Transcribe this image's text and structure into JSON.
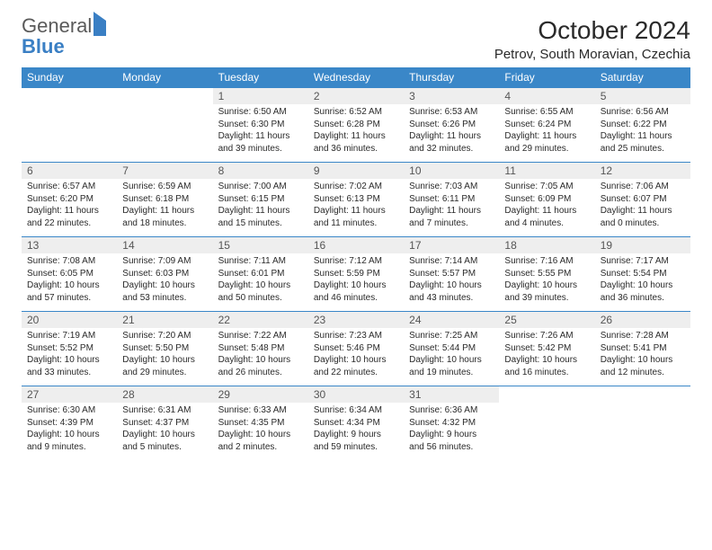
{
  "brand": {
    "name1": "General",
    "name2": "Blue"
  },
  "title": "October 2024",
  "location": "Petrov, South Moravian, Czechia",
  "colors": {
    "header_bg": "#3a87c8",
    "daynum_bg": "#eeeeee",
    "rule": "#3a87c8",
    "logo_gray": "#5a5a5a",
    "logo_blue": "#3a7fc4"
  },
  "weekdays": [
    "Sunday",
    "Monday",
    "Tuesday",
    "Wednesday",
    "Thursday",
    "Friday",
    "Saturday"
  ],
  "weeks": [
    [
      {
        "n": "",
        "sr": "",
        "ss": "",
        "dl": ""
      },
      {
        "n": "",
        "sr": "",
        "ss": "",
        "dl": ""
      },
      {
        "n": "1",
        "sr": "Sunrise: 6:50 AM",
        "ss": "Sunset: 6:30 PM",
        "dl": "Daylight: 11 hours and 39 minutes."
      },
      {
        "n": "2",
        "sr": "Sunrise: 6:52 AM",
        "ss": "Sunset: 6:28 PM",
        "dl": "Daylight: 11 hours and 36 minutes."
      },
      {
        "n": "3",
        "sr": "Sunrise: 6:53 AM",
        "ss": "Sunset: 6:26 PM",
        "dl": "Daylight: 11 hours and 32 minutes."
      },
      {
        "n": "4",
        "sr": "Sunrise: 6:55 AM",
        "ss": "Sunset: 6:24 PM",
        "dl": "Daylight: 11 hours and 29 minutes."
      },
      {
        "n": "5",
        "sr": "Sunrise: 6:56 AM",
        "ss": "Sunset: 6:22 PM",
        "dl": "Daylight: 11 hours and 25 minutes."
      }
    ],
    [
      {
        "n": "6",
        "sr": "Sunrise: 6:57 AM",
        "ss": "Sunset: 6:20 PM",
        "dl": "Daylight: 11 hours and 22 minutes."
      },
      {
        "n": "7",
        "sr": "Sunrise: 6:59 AM",
        "ss": "Sunset: 6:18 PM",
        "dl": "Daylight: 11 hours and 18 minutes."
      },
      {
        "n": "8",
        "sr": "Sunrise: 7:00 AM",
        "ss": "Sunset: 6:15 PM",
        "dl": "Daylight: 11 hours and 15 minutes."
      },
      {
        "n": "9",
        "sr": "Sunrise: 7:02 AM",
        "ss": "Sunset: 6:13 PM",
        "dl": "Daylight: 11 hours and 11 minutes."
      },
      {
        "n": "10",
        "sr": "Sunrise: 7:03 AM",
        "ss": "Sunset: 6:11 PM",
        "dl": "Daylight: 11 hours and 7 minutes."
      },
      {
        "n": "11",
        "sr": "Sunrise: 7:05 AM",
        "ss": "Sunset: 6:09 PM",
        "dl": "Daylight: 11 hours and 4 minutes."
      },
      {
        "n": "12",
        "sr": "Sunrise: 7:06 AM",
        "ss": "Sunset: 6:07 PM",
        "dl": "Daylight: 11 hours and 0 minutes."
      }
    ],
    [
      {
        "n": "13",
        "sr": "Sunrise: 7:08 AM",
        "ss": "Sunset: 6:05 PM",
        "dl": "Daylight: 10 hours and 57 minutes."
      },
      {
        "n": "14",
        "sr": "Sunrise: 7:09 AM",
        "ss": "Sunset: 6:03 PM",
        "dl": "Daylight: 10 hours and 53 minutes."
      },
      {
        "n": "15",
        "sr": "Sunrise: 7:11 AM",
        "ss": "Sunset: 6:01 PM",
        "dl": "Daylight: 10 hours and 50 minutes."
      },
      {
        "n": "16",
        "sr": "Sunrise: 7:12 AM",
        "ss": "Sunset: 5:59 PM",
        "dl": "Daylight: 10 hours and 46 minutes."
      },
      {
        "n": "17",
        "sr": "Sunrise: 7:14 AM",
        "ss": "Sunset: 5:57 PM",
        "dl": "Daylight: 10 hours and 43 minutes."
      },
      {
        "n": "18",
        "sr": "Sunrise: 7:16 AM",
        "ss": "Sunset: 5:55 PM",
        "dl": "Daylight: 10 hours and 39 minutes."
      },
      {
        "n": "19",
        "sr": "Sunrise: 7:17 AM",
        "ss": "Sunset: 5:54 PM",
        "dl": "Daylight: 10 hours and 36 minutes."
      }
    ],
    [
      {
        "n": "20",
        "sr": "Sunrise: 7:19 AM",
        "ss": "Sunset: 5:52 PM",
        "dl": "Daylight: 10 hours and 33 minutes."
      },
      {
        "n": "21",
        "sr": "Sunrise: 7:20 AM",
        "ss": "Sunset: 5:50 PM",
        "dl": "Daylight: 10 hours and 29 minutes."
      },
      {
        "n": "22",
        "sr": "Sunrise: 7:22 AM",
        "ss": "Sunset: 5:48 PM",
        "dl": "Daylight: 10 hours and 26 minutes."
      },
      {
        "n": "23",
        "sr": "Sunrise: 7:23 AM",
        "ss": "Sunset: 5:46 PM",
        "dl": "Daylight: 10 hours and 22 minutes."
      },
      {
        "n": "24",
        "sr": "Sunrise: 7:25 AM",
        "ss": "Sunset: 5:44 PM",
        "dl": "Daylight: 10 hours and 19 minutes."
      },
      {
        "n": "25",
        "sr": "Sunrise: 7:26 AM",
        "ss": "Sunset: 5:42 PM",
        "dl": "Daylight: 10 hours and 16 minutes."
      },
      {
        "n": "26",
        "sr": "Sunrise: 7:28 AM",
        "ss": "Sunset: 5:41 PM",
        "dl": "Daylight: 10 hours and 12 minutes."
      }
    ],
    [
      {
        "n": "27",
        "sr": "Sunrise: 6:30 AM",
        "ss": "Sunset: 4:39 PM",
        "dl": "Daylight: 10 hours and 9 minutes."
      },
      {
        "n": "28",
        "sr": "Sunrise: 6:31 AM",
        "ss": "Sunset: 4:37 PM",
        "dl": "Daylight: 10 hours and 5 minutes."
      },
      {
        "n": "29",
        "sr": "Sunrise: 6:33 AM",
        "ss": "Sunset: 4:35 PM",
        "dl": "Daylight: 10 hours and 2 minutes."
      },
      {
        "n": "30",
        "sr": "Sunrise: 6:34 AM",
        "ss": "Sunset: 4:34 PM",
        "dl": "Daylight: 9 hours and 59 minutes."
      },
      {
        "n": "31",
        "sr": "Sunrise: 6:36 AM",
        "ss": "Sunset: 4:32 PM",
        "dl": "Daylight: 9 hours and 56 minutes."
      },
      {
        "n": "",
        "sr": "",
        "ss": "",
        "dl": ""
      },
      {
        "n": "",
        "sr": "",
        "ss": "",
        "dl": ""
      }
    ]
  ]
}
